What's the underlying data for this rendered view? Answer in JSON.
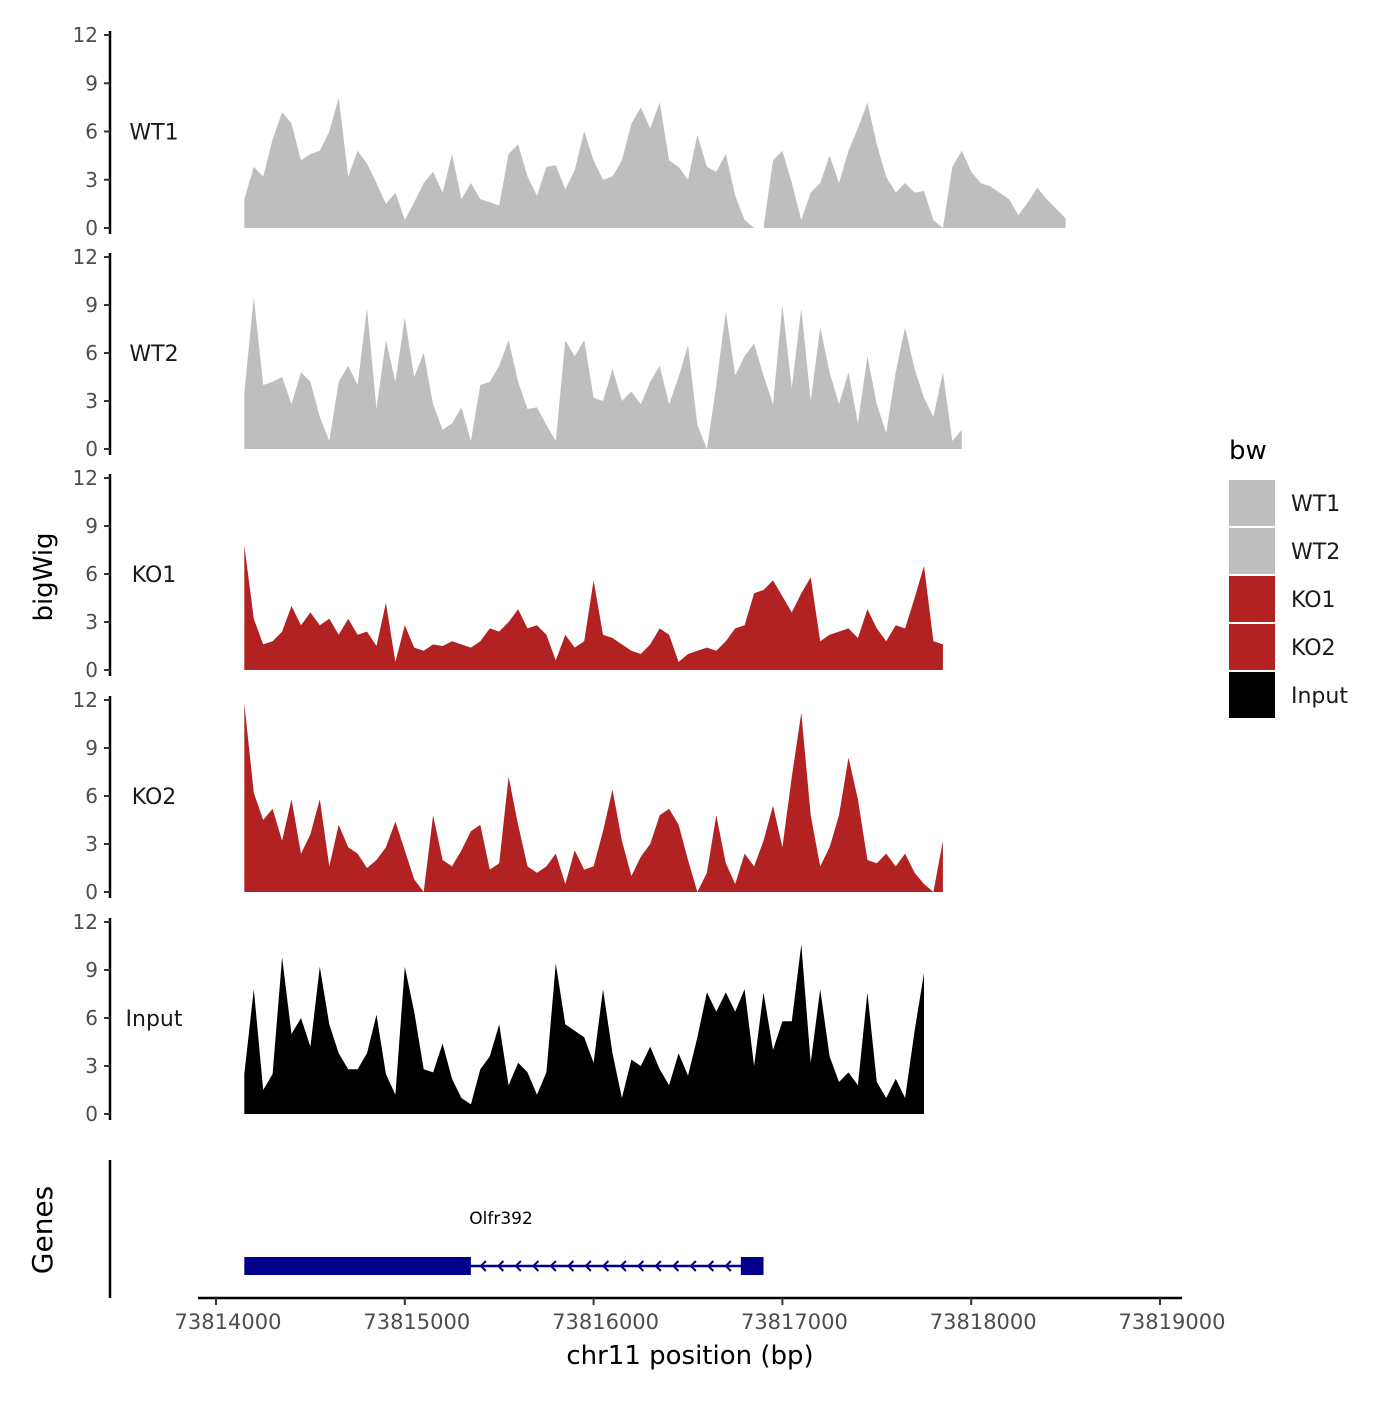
{
  "chart_data": {
    "type": "area",
    "title": "",
    "ylabel": "bigWig",
    "xlabel": "chr11 position (bp)",
    "xlim": [
      73814000,
      73819000
    ],
    "x_ticks": [
      73814000,
      73815000,
      73816000,
      73817000,
      73818000,
      73819000
    ],
    "x_tick_labels": [
      "73814000",
      "73815000",
      "73816000",
      "73817000",
      "73818000",
      "73819000"
    ],
    "ylim": [
      0,
      12
    ],
    "y_ticks": [
      0,
      3,
      6,
      9,
      12
    ],
    "y_tick_labels": [
      "0",
      "3",
      "6",
      "9",
      "12"
    ],
    "legend": {
      "title": "bw",
      "placement": "right",
      "entries": [
        {
          "label": "WT1",
          "color": "#bebebe"
        },
        {
          "label": "WT2",
          "color": "#bebebe"
        },
        {
          "label": "KO1",
          "color": "#b22222"
        },
        {
          "label": "KO2",
          "color": "#b22222"
        },
        {
          "label": "Input",
          "color": "#000000"
        }
      ]
    },
    "series": [
      {
        "name": "WT1",
        "color": "#bebebe",
        "x_start": 73814150,
        "x_step": 50,
        "values": [
          1.8,
          3.8,
          3.2,
          5.5,
          7.2,
          6.5,
          4.2,
          4.6,
          4.8,
          6.0,
          8.1,
          3.2,
          4.8,
          4.0,
          2.8,
          1.5,
          2.2,
          0.5,
          1.6,
          2.8,
          3.5,
          2.2,
          4.6,
          1.8,
          2.8,
          1.8,
          1.6,
          1.4,
          4.6,
          5.2,
          3.2,
          2.0,
          3.8,
          3.9,
          2.4,
          3.6,
          6.0,
          4.2,
          3.0,
          3.2,
          4.2,
          6.5,
          7.5,
          6.2,
          7.8,
          4.2,
          3.8,
          3.0,
          5.8,
          3.8,
          3.5,
          4.6,
          2.0,
          0.5,
          0,
          0,
          4.2,
          4.8,
          2.8,
          0.5,
          2.2,
          2.8,
          4.5,
          2.8,
          4.8,
          6.2,
          7.8,
          5.2,
          3.2,
          2.2,
          2.8,
          2.2,
          2.3,
          0.5,
          0,
          3.8,
          4.8,
          3.5,
          2.8,
          2.6,
          2.2,
          1.8,
          0.8,
          1.6,
          2.5,
          1.8,
          1.2,
          0.6
        ]
      },
      {
        "name": "WT2",
        "color": "#bebebe",
        "x_start": 73814150,
        "x_step": 50,
        "values": [
          3.5,
          9.5,
          4.0,
          4.2,
          4.5,
          2.8,
          4.8,
          4.2,
          2.0,
          0.5,
          4.2,
          5.2,
          4.0,
          8.8,
          2.5,
          6.8,
          4.2,
          8.2,
          4.5,
          6.0,
          2.8,
          1.2,
          1.6,
          2.6,
          0.5,
          4.0,
          4.2,
          5.2,
          6.8,
          4.2,
          2.5,
          2.6,
          1.5,
          0.5,
          6.8,
          5.8,
          6.8,
          3.2,
          3.0,
          5.0,
          3.0,
          3.6,
          2.8,
          4.2,
          5.2,
          2.8,
          4.5,
          6.5,
          1.5,
          0,
          4.0,
          8.6,
          4.6,
          5.8,
          6.6,
          4.6,
          2.8,
          9.0,
          3.8,
          8.8,
          3.0,
          7.6,
          4.8,
          2.8,
          4.8,
          1.6,
          5.8,
          2.8,
          1.0,
          4.8,
          7.6,
          5.0,
          3.2,
          2.0,
          4.8,
          0.5,
          1.2
        ]
      },
      {
        "name": "KO1",
        "color": "#b22222",
        "x_start": 73814150,
        "x_step": 50,
        "values": [
          7.8,
          3.2,
          1.6,
          1.8,
          2.4,
          4.0,
          2.8,
          3.6,
          2.8,
          3.2,
          2.2,
          3.2,
          2.2,
          2.4,
          1.5,
          4.2,
          0.5,
          2.8,
          1.4,
          1.2,
          1.6,
          1.5,
          1.8,
          1.6,
          1.4,
          1.8,
          2.6,
          2.4,
          3.0,
          3.8,
          2.6,
          2.8,
          2.2,
          0.6,
          2.2,
          1.4,
          1.8,
          5.6,
          2.2,
          2.0,
          1.6,
          1.2,
          1.0,
          1.6,
          2.6,
          2.2,
          0.5,
          1.0,
          1.2,
          1.4,
          1.2,
          1.8,
          2.6,
          2.8,
          4.8,
          5.0,
          5.6,
          4.6,
          3.6,
          4.8,
          5.8,
          1.8,
          2.2,
          2.4,
          2.6,
          2.0,
          3.8,
          2.6,
          1.8,
          2.8,
          2.6,
          4.5,
          6.5,
          1.8,
          1.6
        ]
      },
      {
        "name": "KO2",
        "color": "#b22222",
        "x_start": 73814150,
        "x_step": 50,
        "values": [
          11.8,
          6.2,
          4.5,
          5.2,
          3.2,
          5.8,
          2.4,
          3.6,
          5.8,
          1.6,
          4.2,
          2.8,
          2.4,
          1.5,
          2.0,
          2.8,
          4.4,
          2.6,
          0.8,
          0,
          4.8,
          2.0,
          1.6,
          2.6,
          3.8,
          4.2,
          1.4,
          1.8,
          7.2,
          4.2,
          1.6,
          1.2,
          1.6,
          2.4,
          0.5,
          2.6,
          1.4,
          1.6,
          3.8,
          6.4,
          3.2,
          1.0,
          2.2,
          3.0,
          4.8,
          5.2,
          4.2,
          2.0,
          0,
          1.2,
          4.8,
          1.8,
          0.5,
          2.4,
          1.6,
          3.2,
          5.4,
          2.8,
          7.2,
          11.2,
          4.8,
          1.6,
          2.8,
          4.8,
          8.4,
          5.8,
          2.0,
          1.8,
          2.4,
          1.6,
          2.4,
          1.2,
          0.5,
          0,
          3.2
        ]
      },
      {
        "name": "Input",
        "color": "#000000",
        "x_start": 73814150,
        "x_step": 50,
        "values": [
          2.5,
          7.8,
          1.5,
          2.5,
          9.8,
          5.0,
          6.0,
          4.2,
          9.2,
          5.6,
          3.8,
          2.8,
          2.8,
          3.8,
          6.2,
          2.5,
          1.2,
          9.2,
          6.4,
          2.8,
          2.6,
          4.4,
          2.2,
          1.0,
          0.6,
          2.8,
          3.6,
          5.6,
          1.8,
          3.2,
          2.6,
          1.2,
          2.6,
          9.4,
          5.6,
          5.2,
          4.8,
          3.2,
          7.8,
          3.8,
          1.0,
          3.4,
          3.0,
          4.2,
          2.8,
          1.8,
          3.8,
          2.4,
          4.8,
          7.6,
          6.4,
          7.6,
          6.4,
          7.8,
          3.0,
          7.6,
          4.0,
          5.8,
          5.8,
          10.6,
          3.2,
          7.8,
          3.6,
          2.0,
          2.6,
          1.8,
          7.6,
          2.0,
          1.0,
          2.2,
          1.0,
          5.2,
          8.8
        ]
      }
    ],
    "gene_track": {
      "label": "Genes",
      "gene_name": "Olfr392",
      "start": 73814150,
      "end": 73816900,
      "strand": "-",
      "exons": [
        [
          73814150,
          73815350
        ],
        [
          73816780,
          73816900
        ]
      ],
      "color": "#00008b"
    }
  }
}
